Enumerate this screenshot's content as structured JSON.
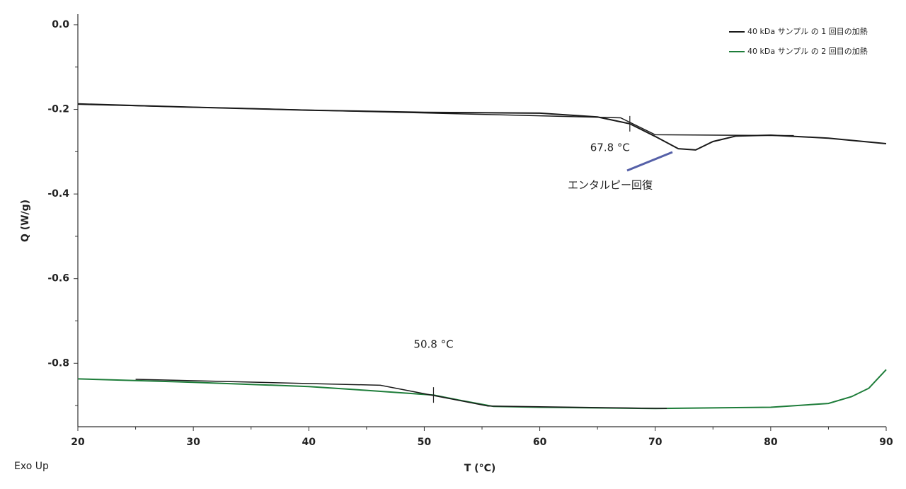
{
  "chart_data": {
    "type": "line",
    "xlabel": "T (°C)",
    "ylabel": "Q (W/g)",
    "corner_note": "Exo Up",
    "xlim": [
      20,
      90
    ],
    "ylim": [
      -0.95,
      0.025
    ],
    "xticks": [
      20,
      30,
      40,
      50,
      60,
      70,
      80,
      90
    ],
    "yticks": [
      {
        "value": 0,
        "label": "0.0"
      },
      -0.2,
      -0.4,
      -0.6,
      -0.8
    ],
    "xminorticks": [
      25,
      35,
      45,
      55,
      65,
      75,
      85
    ],
    "yminorticks": [
      -0.1,
      -0.3,
      -0.5,
      -0.7,
      -0.9
    ],
    "legend": "top-right",
    "series": [
      {
        "name": "40 kDa サンプル の 1 回目の加熱",
        "color": "#1a1a1a",
        "x": [
          20,
          30,
          40,
          50,
          60,
          65,
          67.8,
          70,
          72,
          73.5,
          75,
          77,
          80,
          85,
          90
        ],
        "values": [
          -0.187,
          -0.195,
          -0.202,
          -0.207,
          -0.209,
          -0.218,
          -0.234,
          -0.264,
          -0.293,
          -0.296,
          -0.276,
          -0.263,
          -0.261,
          -0.268,
          -0.281
        ]
      },
      {
        "name": "40 kDa サンプル の 2 回目の加熱",
        "color": "#1e7d3a",
        "x": [
          20,
          30,
          40,
          45,
          50.8,
          53,
          56,
          60,
          70,
          80,
          85,
          87,
          88.5,
          90
        ],
        "values": [
          -0.837,
          -0.845,
          -0.855,
          -0.864,
          -0.875,
          -0.887,
          -0.902,
          -0.904,
          -0.907,
          -0.904,
          -0.895,
          -0.879,
          -0.859,
          -0.815
        ]
      }
    ],
    "construction_lines": [
      {
        "color": "#1a1a1a",
        "x": [
          20,
          67,
          70,
          82
        ],
        "values": [
          -0.188,
          -0.22,
          -0.26,
          -0.262
        ]
      },
      {
        "color": "#1a1a1a",
        "x": [
          25,
          46.2,
          55.5,
          71
        ],
        "values": [
          -0.838,
          -0.852,
          -0.901,
          -0.907
        ]
      }
    ],
    "annotations": [
      {
        "text": "67.8 °C",
        "x": 67.8,
        "y": -0.234,
        "color": "#222222"
      },
      {
        "text": "50.8 °C",
        "x": 50.8,
        "y": -0.875,
        "color": "#1e7d3a"
      }
    ],
    "callout": {
      "text": "エンタルピー回復",
      "color": "#5560a8"
    }
  }
}
